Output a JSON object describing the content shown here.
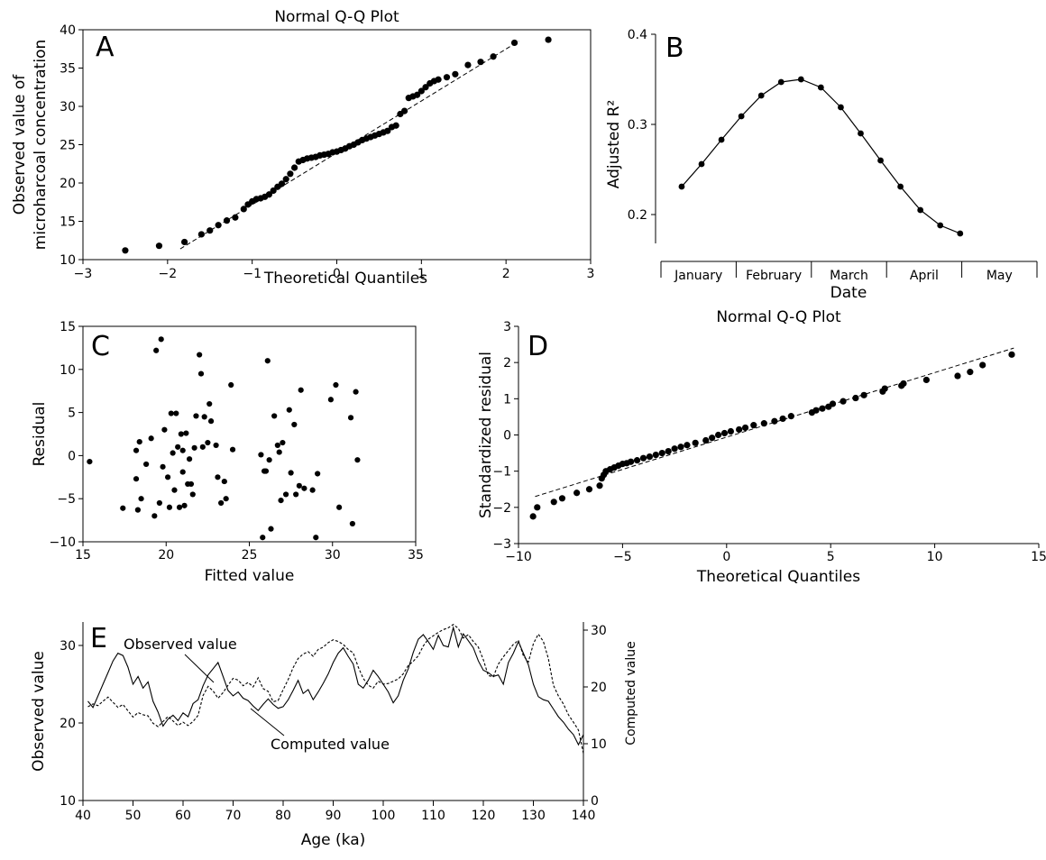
{
  "chart_data": [
    {
      "panel": "A",
      "type": "scatter",
      "title": "Normal Q-Q Plot",
      "xlabel": "Theoretical Quantiles",
      "ylabel": [
        "Observed value of",
        "microharcoal concentration"
      ],
      "xlim": [
        -3,
        3
      ],
      "ylim": [
        10,
        40
      ],
      "xticks": [
        "−3",
        "−2",
        "−1",
        "0",
        "1",
        "2",
        "3"
      ],
      "yticks": [
        "10",
        "15",
        "20",
        "25",
        "30",
        "35",
        "40"
      ],
      "reference_line": {
        "x": [
          -1.85,
          2.15
        ],
        "y": [
          11.4,
          38.5
        ]
      },
      "points": {
        "x": [
          -2.5,
          -2.1,
          -1.8,
          -1.6,
          -1.5,
          -1.4,
          -1.3,
          -1.2,
          -1.1,
          -1.05,
          -1.0,
          -0.95,
          -0.9,
          -0.85,
          -0.8,
          -0.75,
          -0.7,
          -0.65,
          -0.6,
          -0.55,
          -0.5,
          -0.45,
          -0.4,
          -0.35,
          -0.3,
          -0.25,
          -0.2,
          -0.15,
          -0.1,
          -0.05,
          0.0,
          0.05,
          0.1,
          0.15,
          0.2,
          0.25,
          0.3,
          0.35,
          0.4,
          0.45,
          0.5,
          0.55,
          0.6,
          0.65,
          0.7,
          0.75,
          0.8,
          0.85,
          0.9,
          0.95,
          1.0,
          1.05,
          1.1,
          1.15,
          1.2,
          1.3,
          1.4,
          1.55,
          1.7,
          1.85,
          2.1,
          2.5
        ],
        "y": [
          11.2,
          11.8,
          12.3,
          13.3,
          13.8,
          14.5,
          15.1,
          15.5,
          16.6,
          17.2,
          17.6,
          17.9,
          18.0,
          18.2,
          18.5,
          19.0,
          19.5,
          19.9,
          20.5,
          21.2,
          22.0,
          22.8,
          23.0,
          23.2,
          23.3,
          23.4,
          23.6,
          23.7,
          23.8,
          24.0,
          24.1,
          24.3,
          24.5,
          24.8,
          25.0,
          25.3,
          25.6,
          25.8,
          26.0,
          26.2,
          26.4,
          26.6,
          26.8,
          27.3,
          27.5,
          29.0,
          29.4,
          31.1,
          31.3,
          31.5,
          32.0,
          32.5,
          33.0,
          33.3,
          33.5,
          33.8,
          34.2,
          35.4,
          35.8,
          36.5,
          38.3,
          38.7
        ]
      }
    },
    {
      "panel": "B",
      "type": "line",
      "xlabel": "Date",
      "ylabel": "Adjusted R²",
      "ylim": [
        0.17,
        0.4
      ],
      "yticks": [
        "0.2",
        "0.3",
        "0.4"
      ],
      "categories": [
        "January",
        "February",
        "March",
        "April",
        "May"
      ],
      "x": [
        0.25,
        0.5,
        0.75,
        1.0,
        1.25,
        1.5,
        1.75,
        2.0,
        2.25,
        2.5,
        2.75,
        3.0,
        3.25,
        3.5,
        3.75,
        4.0,
        4.25
      ],
      "values": [
        0.231,
        0.256,
        0.283,
        0.309,
        0.332,
        0.347,
        0.35,
        0.341,
        0.319,
        0.29,
        0.26,
        0.231,
        0.205,
        0.188,
        0.179,
        null,
        null
      ]
    },
    {
      "panel": "C",
      "type": "scatter",
      "xlabel": "Fitted value",
      "ylabel": "Residual",
      "xlim": [
        15,
        35
      ],
      "ylim": [
        -10,
        15
      ],
      "xticks": [
        "15",
        "20",
        "25",
        "30",
        "35"
      ],
      "yticks": [
        "−10",
        "−5",
        "0",
        "5",
        "10",
        "15"
      ],
      "points": {
        "x": [
          15.4,
          17.4,
          18.2,
          18.2,
          18.3,
          18.4,
          18.5,
          18.8,
          19.1,
          19.3,
          19.4,
          19.6,
          19.7,
          19.8,
          19.9,
          20.1,
          20.2,
          20.3,
          20.4,
          20.5,
          20.6,
          20.7,
          20.8,
          20.9,
          21.0,
          21.0,
          21.1,
          21.2,
          21.3,
          21.4,
          21.5,
          21.6,
          21.7,
          21.8,
          22.0,
          22.1,
          22.2,
          22.3,
          22.5,
          22.6,
          22.7,
          23.0,
          23.1,
          23.3,
          23.5,
          23.6,
          23.9,
          24.0,
          25.7,
          25.8,
          25.9,
          26.0,
          26.1,
          26.2,
          26.3,
          26.5,
          26.7,
          26.8,
          26.9,
          27.0,
          27.2,
          27.4,
          27.5,
          27.7,
          27.8,
          28.0,
          28.1,
          28.3,
          28.8,
          29.0,
          29.1,
          29.9,
          30.2,
          30.4,
          31.1,
          31.2,
          31.4,
          31.5
        ],
        "y": [
          -0.7,
          -6.1,
          0.6,
          -2.7,
          -6.3,
          1.6,
          -5.0,
          -1.0,
          2.0,
          -7.0,
          12.2,
          -5.5,
          13.5,
          -1.3,
          3.0,
          -2.5,
          -6.0,
          4.9,
          0.3,
          -4.0,
          4.9,
          1.0,
          -6.0,
          2.5,
          -1.9,
          0.6,
          -5.8,
          2.6,
          -3.3,
          -0.4,
          -3.3,
          -4.5,
          0.9,
          4.6,
          11.7,
          9.5,
          1.0,
          4.5,
          1.5,
          6.0,
          4.0,
          1.2,
          -2.5,
          -5.5,
          -3.0,
          -5.0,
          8.2,
          0.7,
          0.1,
          -9.5,
          -1.8,
          -1.8,
          11.0,
          -0.5,
          -8.5,
          4.6,
          1.2,
          0.4,
          -5.2,
          1.5,
          -4.5,
          5.3,
          -2.0,
          3.6,
          -4.5,
          -3.5,
          7.6,
          -3.8,
          -4.0,
          -9.5,
          -2.1,
          6.5,
          8.2,
          -6.0,
          4.4,
          -7.9,
          7.4,
          -0.5
        ]
      }
    },
    {
      "panel": "D",
      "type": "scatter",
      "title": "Normal Q-Q Plot",
      "xlabel": "Theoretical Quantiles",
      "ylabel": "Standardized residual",
      "xlim": [
        -10,
        15
      ],
      "ylim": [
        -3,
        3
      ],
      "xticks": [
        "−10",
        "−5",
        "0",
        "5",
        "10",
        "15"
      ],
      "yticks": [
        "−3",
        "−2",
        "−1",
        "0",
        "1",
        "2",
        "3"
      ],
      "reference_line": {
        "x": [
          -9.2,
          13.8
        ],
        "y": [
          -1.7,
          2.4
        ]
      },
      "points": {
        "x": [
          -9.3,
          -9.1,
          -8.3,
          -7.9,
          -7.2,
          -6.6,
          -6.1,
          -6.0,
          -5.9,
          -5.8,
          -5.6,
          -5.4,
          -5.2,
          -5.0,
          -4.8,
          -4.6,
          -4.3,
          -4.0,
          -3.7,
          -3.4,
          -3.1,
          -2.8,
          -2.5,
          -2.2,
          -1.9,
          -1.5,
          -1.0,
          -0.7,
          -0.4,
          -0.1,
          0.2,
          0.6,
          0.9,
          1.3,
          1.8,
          2.3,
          2.7,
          3.1,
          4.1,
          4.3,
          4.6,
          4.9,
          5.1,
          5.6,
          6.2,
          6.6,
          7.5,
          7.6,
          8.4,
          8.5,
          9.6,
          11.1,
          11.7,
          12.3,
          13.7
        ],
        "y": [
          -2.25,
          -2.0,
          -1.85,
          -1.75,
          -1.6,
          -1.5,
          -1.4,
          -1.2,
          -1.1,
          -1.0,
          -0.95,
          -0.9,
          -0.85,
          -0.8,
          -0.78,
          -0.74,
          -0.7,
          -0.64,
          -0.6,
          -0.55,
          -0.5,
          -0.45,
          -0.38,
          -0.33,
          -0.28,
          -0.22,
          -0.15,
          -0.08,
          0.0,
          0.05,
          0.1,
          0.15,
          0.2,
          0.27,
          0.32,
          0.38,
          0.45,
          0.52,
          0.62,
          0.68,
          0.73,
          0.78,
          0.86,
          0.93,
          1.02,
          1.1,
          1.2,
          1.28,
          1.36,
          1.42,
          1.52,
          1.63,
          1.74,
          1.93,
          2.22
        ]
      }
    },
    {
      "panel": "E",
      "type": "line",
      "xlabel": "Age (ka)",
      "ylabel": "Observed value",
      "ylabel_right": "Computed value",
      "xlim": [
        40,
        140
      ],
      "ylim": [
        10,
        30
      ],
      "ylim_right": [
        0,
        30
      ],
      "xticks": [
        "40",
        "50",
        "60",
        "70",
        "80",
        "90",
        "100",
        "110",
        "120",
        "130",
        "140"
      ],
      "yticks": [
        "10",
        "20",
        "30"
      ],
      "yticks_right": [
        "0",
        "10",
        "20",
        "30"
      ],
      "annotations": [
        "Observed value",
        "Computed value"
      ],
      "series": [
        {
          "name": "Observed value",
          "x": [
            41,
            42,
            43,
            44,
            45,
            46,
            47,
            48,
            49,
            50,
            51,
            52,
            53,
            54,
            55,
            56,
            57,
            58,
            59,
            60,
            61,
            62,
            63,
            64,
            65,
            66,
            67,
            68,
            69,
            70,
            71,
            72,
            73,
            74,
            75,
            76,
            77,
            78,
            79,
            80,
            81,
            82,
            83,
            84,
            85,
            86,
            87,
            88,
            89,
            90,
            91,
            92,
            93,
            94,
            95,
            96,
            97,
            98,
            99,
            100,
            101,
            102,
            103,
            104,
            105,
            106,
            107,
            108,
            109,
            110,
            111,
            112,
            113,
            114,
            115,
            116,
            117,
            118,
            119,
            120,
            121,
            122,
            123,
            124,
            125,
            126,
            127,
            128,
            129,
            130,
            131,
            132,
            133,
            134,
            135,
            136,
            137,
            138,
            139,
            140
          ],
          "y": [
            22.8,
            22.0,
            23.5,
            25.0,
            26.5,
            28.0,
            29.0,
            28.7,
            27.2,
            25.0,
            26.0,
            24.5,
            25.3,
            22.8,
            21.4,
            19.6,
            20.5,
            21.0,
            20.3,
            21.3,
            20.8,
            22.5,
            23.0,
            24.8,
            26.2,
            27.0,
            27.8,
            26.0,
            24.2,
            23.5,
            24.0,
            23.2,
            22.9,
            22.2,
            21.6,
            22.4,
            23.1,
            22.4,
            21.9,
            22.1,
            23.0,
            24.2,
            25.5,
            23.8,
            24.3,
            23.0,
            24.0,
            25.1,
            26.3,
            27.8,
            29.0,
            29.7,
            28.6,
            27.6,
            25.0,
            24.5,
            25.5,
            26.8,
            26.0,
            25.0,
            24.0,
            22.6,
            23.5,
            25.5,
            27.0,
            29.1,
            30.8,
            31.4,
            30.5,
            29.5,
            31.3,
            30.0,
            29.8,
            32.3,
            29.8,
            31.5,
            30.6,
            29.7,
            28.0,
            26.8,
            26.5,
            26.0,
            26.2,
            25.0,
            27.8,
            29.0,
            30.5,
            29.0,
            27.5,
            25.0,
            23.4,
            23.0,
            22.8,
            21.8,
            20.8,
            20.1,
            19.2,
            18.5,
            17.2,
            18.5
          ],
          "axis": "left"
        },
        {
          "name": "Computed value",
          "x": [
            41,
            42,
            43,
            44,
            45,
            46,
            47,
            48,
            49,
            50,
            51,
            52,
            53,
            54,
            55,
            56,
            57,
            58,
            59,
            60,
            61,
            62,
            63,
            64,
            65,
            66,
            67,
            68,
            69,
            70,
            71,
            72,
            73,
            74,
            75,
            76,
            77,
            78,
            79,
            80,
            81,
            82,
            83,
            84,
            85,
            86,
            87,
            88,
            89,
            90,
            91,
            92,
            93,
            94,
            95,
            96,
            97,
            98,
            99,
            100,
            101,
            102,
            103,
            104,
            105,
            106,
            107,
            108,
            109,
            110,
            111,
            112,
            113,
            114,
            115,
            116,
            117,
            118,
            119,
            120,
            121,
            122,
            123,
            124,
            125,
            126,
            127,
            128,
            129,
            130,
            131,
            132,
            133,
            134,
            135,
            136,
            137,
            138,
            139,
            140
          ],
          "y": [
            16.5,
            17.0,
            16.7,
            17.5,
            18.2,
            17.3,
            16.4,
            16.9,
            15.8,
            14.7,
            15.5,
            15.1,
            14.9,
            13.6,
            13.0,
            13.9,
            14.8,
            14.0,
            13.2,
            13.8,
            13.2,
            13.9,
            15.0,
            18.5,
            20.1,
            19.3,
            18.0,
            19.0,
            20.3,
            21.5,
            21.2,
            20.2,
            20.8,
            20.0,
            21.6,
            19.7,
            19.2,
            17.4,
            17.6,
            19.5,
            21.3,
            23.4,
            25.0,
            25.8,
            26.2,
            25.4,
            26.6,
            27.0,
            27.8,
            28.3,
            28.0,
            27.5,
            26.6,
            26.0,
            23.5,
            21.5,
            20.3,
            19.8,
            21.0,
            20.5,
            20.6,
            21.0,
            21.4,
            22.3,
            23.8,
            24.5,
            25.5,
            27.2,
            28.4,
            29.0,
            29.6,
            30.1,
            30.4,
            31.0,
            30.3,
            28.6,
            29.2,
            28.0,
            27.0,
            24.8,
            22.0,
            21.8,
            24.0,
            25.3,
            26.4,
            27.5,
            28.2,
            25.5,
            24.4,
            27.6,
            29.3,
            28.0,
            25.0,
            20.3,
            18.4,
            17.0,
            15.1,
            13.8,
            12.4,
            8.3
          ],
          "axis": "right"
        }
      ]
    }
  ]
}
